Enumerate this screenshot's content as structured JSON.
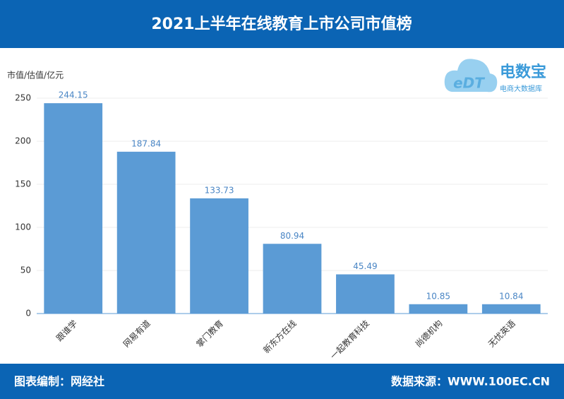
{
  "chart_data": {
    "type": "bar",
    "title": "2021上半年在线教育上市公司市值榜",
    "y_label": "市值/估值/亿元",
    "categories": [
      "跟谁学",
      "网易有道",
      "掌门教育",
      "新东方在线",
      "一起教育科技",
      "尚德机构",
      "无忧英语"
    ],
    "values": [
      244.15,
      187.84,
      133.73,
      80.94,
      45.49,
      10.85,
      10.84
    ],
    "color": "#5b9bd5",
    "ylim": [
      0,
      250
    ],
    "yticks": [
      0,
      50,
      100,
      150,
      200,
      250
    ],
    "grid": true
  },
  "logo": {
    "mark": "eDT",
    "name": "电数宝",
    "tagline": "电商大数据库"
  },
  "footer": {
    "left": "图表编制：网经社",
    "right": "数据来源：WWW.100EC.CN"
  }
}
